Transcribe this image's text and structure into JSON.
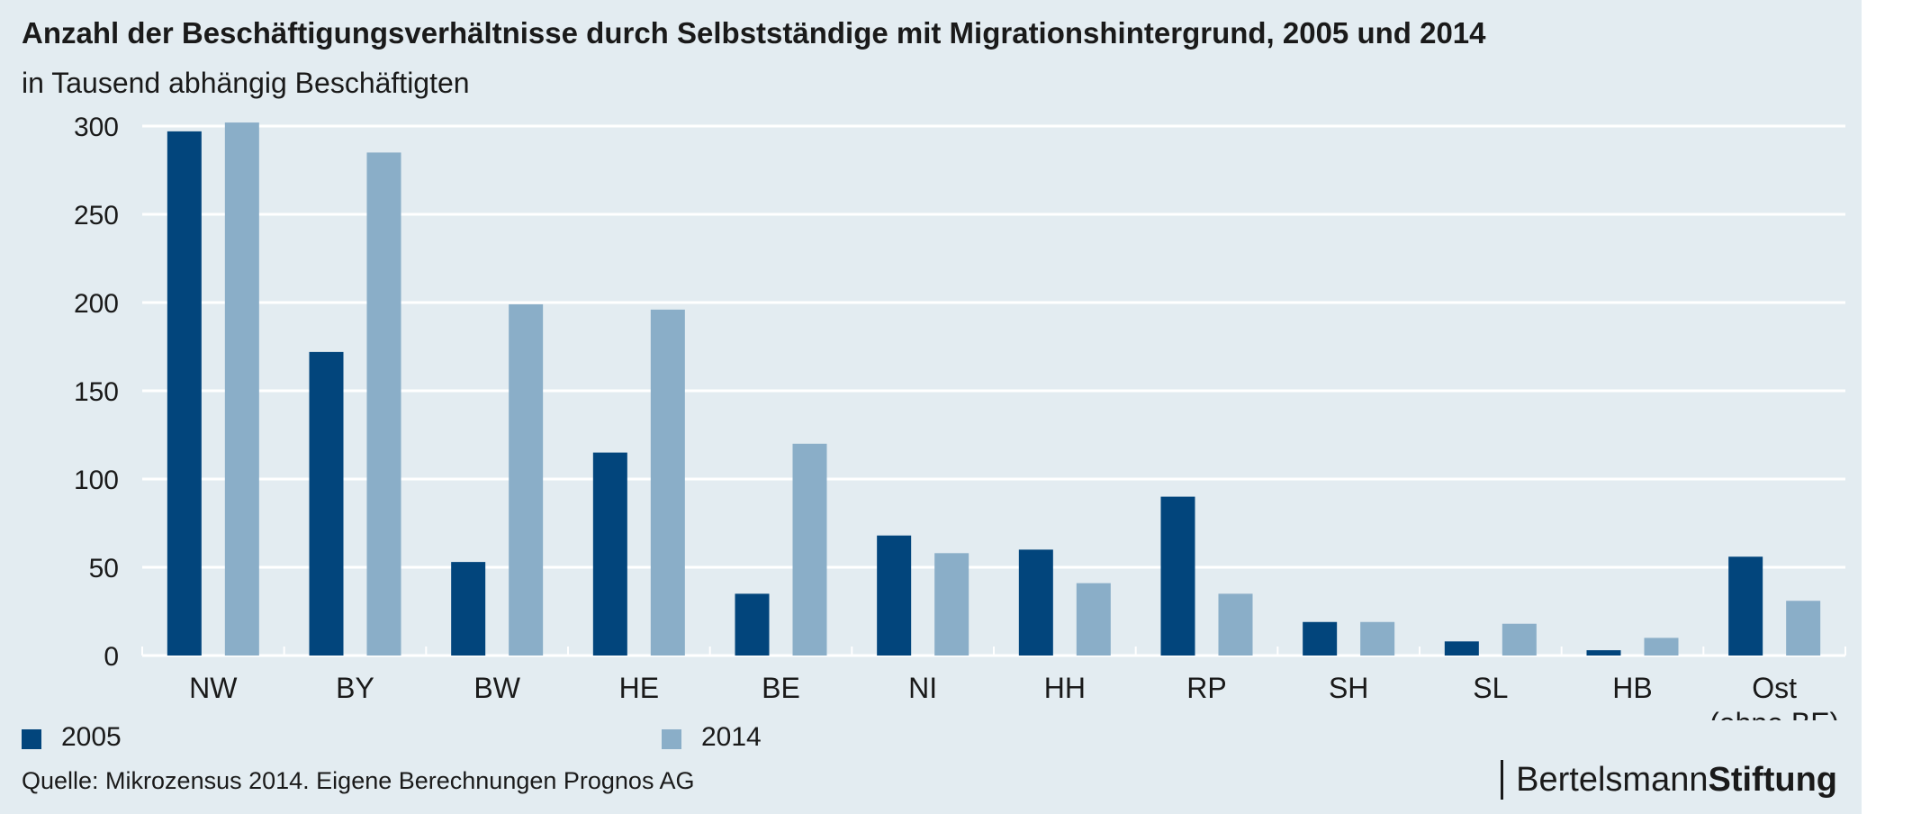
{
  "title": "Anzahl der Beschäftigungsverhältnisse durch Selbstständige mit Migrationshintergrund, 2005 und 2014",
  "subtitle": "in Tausend abhängig Beschäftigten",
  "source": "Quelle: Mikrozensus 2014. Eigene Berechnungen Prognos AG",
  "brand": {
    "part1": "Bertelsmann",
    "part2": "Stiftung"
  },
  "colors": {
    "series_2005": "#02457c",
    "series_2014": "#8aaec8",
    "grid": "#ffffff",
    "text": "#1a1a1a",
    "background": "#e3ecf1"
  },
  "chart_data": {
    "type": "bar",
    "categories": [
      "NW",
      "BY",
      "BW",
      "HE",
      "BE",
      "NI",
      "HH",
      "RP",
      "SH",
      "SL",
      "HB",
      "Ost\n(ohne BE)"
    ],
    "series": [
      {
        "name": "2005",
        "values": [
          297,
          172,
          53,
          115,
          35,
          68,
          60,
          90,
          19,
          8,
          3,
          56
        ]
      },
      {
        "name": "2014",
        "values": [
          302,
          285,
          199,
          196,
          120,
          58,
          41,
          35,
          19,
          18,
          10,
          31
        ]
      }
    ],
    "yticks": [
      0,
      50,
      100,
      150,
      200,
      250,
      300
    ],
    "ylim": [
      0,
      300
    ],
    "grid": true,
    "legend_position": "bottom"
  }
}
